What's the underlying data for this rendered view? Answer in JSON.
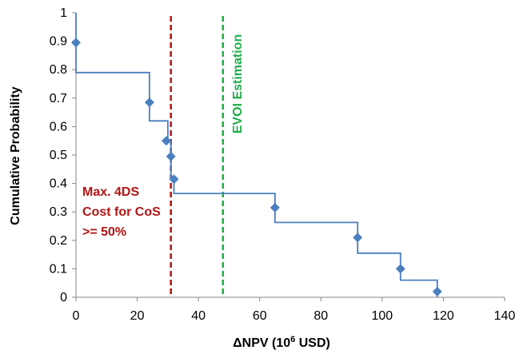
{
  "chart_data": {
    "type": "line",
    "title": "",
    "xlabel": "ΔNPV (10",
    "xlabel_sup": "6",
    "xlabel_tail": " USD)",
    "ylabel": "Cumulative Probability",
    "xlim": [
      0,
      140
    ],
    "ylim": [
      0,
      1
    ],
    "xticks": [
      0,
      20,
      40,
      60,
      80,
      100,
      120,
      140
    ],
    "yticks": [
      0,
      0.1,
      0.2,
      0.3,
      0.4,
      0.5,
      0.6,
      0.7,
      0.8,
      0.9,
      1
    ],
    "grid": false,
    "series": [
      {
        "style": "step",
        "color": "#4a7fc0",
        "x": [
          0,
          0,
          24,
          24,
          30,
          30,
          31,
          31,
          32,
          32,
          65,
          65,
          92,
          92,
          106,
          106,
          118,
          118
        ],
        "y": [
          1,
          0.79,
          0.79,
          0.62,
          0.62,
          0.55,
          0.55,
          0.42,
          0.42,
          0.365,
          0.365,
          0.263,
          0.263,
          0.155,
          0.155,
          0.06,
          0.06,
          0
        ]
      },
      {
        "style": "markers",
        "marker": "diamond",
        "color": "#4a7fc0",
        "x": [
          0,
          24,
          29.5,
          31,
          32,
          65,
          92,
          106,
          118
        ],
        "y": [
          0.895,
          0.685,
          0.55,
          0.495,
          0.415,
          0.315,
          0.21,
          0.1,
          0.02
        ]
      }
    ],
    "vlines": [
      {
        "x": 31,
        "color": "#b01515",
        "dash": true
      },
      {
        "x": 48,
        "color": "#1fad4a",
        "dash": true
      }
    ],
    "annotations": {
      "red_lines": [
        "Max. 4DS",
        "Cost for  CoS",
        ">= 50%"
      ],
      "red_color": "#b01515",
      "green_text": "EVOI Estimation",
      "green_color": "#1fad4a"
    }
  }
}
